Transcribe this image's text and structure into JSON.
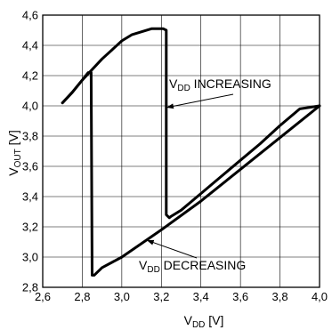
{
  "chart_data": {
    "type": "line",
    "xlabel": {
      "main": "V",
      "sub": "DD",
      "unit": " [V]"
    },
    "ylabel": {
      "main": "V",
      "sub": "OUT",
      "unit": " [V]"
    },
    "xlim": [
      2.6,
      4.0
    ],
    "ylim": [
      2.8,
      4.6
    ],
    "x_ticks": [
      "2,6",
      "2,8",
      "3,0",
      "3,2",
      "3,4",
      "3,6",
      "3,8",
      "4,0"
    ],
    "y_ticks": [
      "2,8",
      "3,0",
      "3,2",
      "3,4",
      "3,6",
      "3,8",
      "4,0",
      "4,2",
      "4,4",
      "4,6"
    ],
    "grid": true,
    "series": [
      {
        "name": "VDD INCREASING",
        "x": [
          2.7,
          2.75,
          2.8,
          2.85,
          2.9,
          2.95,
          3.0,
          3.05,
          3.1,
          3.15,
          3.21,
          3.225,
          3.225,
          3.24,
          3.25,
          3.3,
          3.4,
          3.5,
          3.6,
          3.7,
          3.8,
          3.9,
          4.0
        ],
        "y": [
          4.02,
          4.09,
          4.17,
          4.24,
          4.31,
          4.37,
          4.43,
          4.47,
          4.49,
          4.51,
          4.51,
          4.5,
          3.28,
          3.26,
          3.27,
          3.31,
          3.42,
          3.53,
          3.64,
          3.75,
          3.87,
          3.98,
          4.0
        ]
      },
      {
        "name": "VDD DECREASING",
        "x": [
          4.0,
          3.8,
          3.6,
          3.4,
          3.2,
          3.0,
          2.9,
          2.86,
          2.85,
          2.845,
          2.83,
          2.8,
          2.75,
          2.7
        ],
        "y": [
          4.0,
          3.79,
          3.58,
          3.37,
          3.18,
          3.0,
          2.93,
          2.88,
          2.88,
          4.22,
          4.22,
          4.17,
          4.09,
          4.02
        ]
      }
    ],
    "annotations": [
      {
        "label_main": "V",
        "label_sub": "DD",
        "label_rest": " INCREASING",
        "x": 3.23,
        "y": 3.99
      },
      {
        "label_main": "V",
        "label_sub": "DD",
        "label_rest": " DECREASING",
        "x": 3.13,
        "y": 3.11
      }
    ]
  }
}
